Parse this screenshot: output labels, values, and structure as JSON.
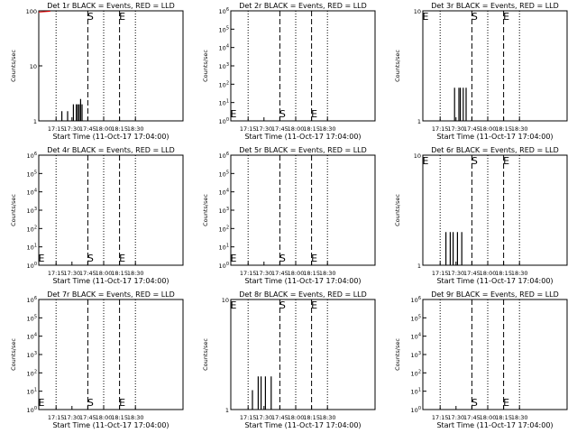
{
  "colors": {
    "events": "#000000",
    "lld": "#ff0000",
    "background": "#ffffff"
  },
  "chart_data": [
    {
      "type": "line",
      "title": "Det 1r BLACK = Events, RED = LLD",
      "xlabel": "Start Time (11-Oct-17 17:04:00)",
      "ylabel": "Counts/sec",
      "y_scale": "log",
      "ylim": [
        1,
        100
      ],
      "y_ticks": [
        "1",
        "10",
        "100"
      ],
      "x_ticks": [
        "17:15",
        "17:30",
        "17:45",
        "18:00",
        "18:15",
        "18:30"
      ],
      "xlim": [
        0,
        100
      ],
      "x_tick_positions": [
        12,
        23,
        34,
        45,
        56,
        67
      ],
      "dotted_lines": [
        12,
        45,
        67,
        100
      ],
      "dashed_lines": [
        34,
        56
      ],
      "markers": [
        {
          "label": "S",
          "x": 34
        },
        {
          "label": "E",
          "x": 56
        }
      ],
      "events": [
        {
          "x": 16,
          "y": 1.5
        },
        {
          "x": 20,
          "y": 1.5
        },
        {
          "x": 24,
          "y": 2
        },
        {
          "x": 26,
          "y": 2
        },
        {
          "x": 27,
          "y": 2
        },
        {
          "x": 28,
          "y": 2
        },
        {
          "x": 29,
          "y": 2.5
        },
        {
          "x": 30,
          "y": 2
        }
      ],
      "lld": [
        {
          "x": 0,
          "y": 95
        },
        {
          "x": 8,
          "y": 98
        }
      ]
    },
    {
      "type": "line",
      "title": "Det 2r BLACK = Events, RED = LLD",
      "xlabel": "Start Time (11-Oct-17 17:04:00)",
      "ylabel": "Counts/sec",
      "y_scale": "log",
      "ylim": [
        1,
        1000000
      ],
      "y_ticks": [
        "10^0",
        "10^1",
        "10^2",
        "10^3",
        "10^4",
        "10^5",
        "10^6"
      ],
      "x_ticks": [
        "17:15",
        "17:30",
        "17:45",
        "18:00",
        "18:15",
        "18:30"
      ],
      "xlim": [
        0,
        100
      ],
      "x_tick_positions": [
        12,
        23,
        34,
        45,
        56,
        67
      ],
      "dotted_lines": [
        12,
        45,
        67,
        100
      ],
      "dashed_lines": [
        34,
        56
      ],
      "markers": [
        {
          "label": "E",
          "x": 0
        },
        {
          "label": "S",
          "x": 34
        },
        {
          "label": "E",
          "x": 56
        }
      ],
      "events": [],
      "lld": []
    },
    {
      "type": "line",
      "title": "Det 3r BLACK = Events, RED = LLD",
      "xlabel": "Start Time (11-Oct-17 17:04:00)",
      "ylabel": "Counts/sec",
      "y_scale": "log",
      "ylim": [
        1,
        10
      ],
      "y_ticks": [
        "1",
        "10"
      ],
      "x_ticks": [
        "17:15",
        "17:30",
        "17:45",
        "18:00",
        "18:15",
        "18:30"
      ],
      "xlim": [
        0,
        100
      ],
      "x_tick_positions": [
        12,
        23,
        34,
        45,
        56,
        67
      ],
      "dotted_lines": [
        12,
        45,
        67,
        100
      ],
      "dashed_lines": [
        34,
        56
      ],
      "markers": [
        {
          "label": "E",
          "x": 0
        },
        {
          "label": "S",
          "x": 34
        },
        {
          "label": "E",
          "x": 56
        }
      ],
      "events": [
        {
          "x": 22,
          "y": 2
        },
        {
          "x": 25,
          "y": 2
        },
        {
          "x": 26,
          "y": 2
        },
        {
          "x": 28,
          "y": 2
        },
        {
          "x": 30,
          "y": 2
        }
      ],
      "lld": []
    },
    {
      "type": "line",
      "title": "Det 4r BLACK = Events, RED = LLD",
      "xlabel": "Start Time (11-Oct-17 17:04:00)",
      "ylabel": "Counts/sec",
      "y_scale": "log",
      "ylim": [
        1,
        1000000
      ],
      "y_ticks": [
        "10^0",
        "10^1",
        "10^2",
        "10^3",
        "10^4",
        "10^5",
        "10^6"
      ],
      "x_ticks": [
        "17:15",
        "17:30",
        "17:45",
        "18:00",
        "18:15",
        "18:30"
      ],
      "xlim": [
        0,
        100
      ],
      "x_tick_positions": [
        12,
        23,
        34,
        45,
        56,
        67
      ],
      "dotted_lines": [
        12,
        45,
        67,
        100
      ],
      "dashed_lines": [
        34,
        56
      ],
      "markers": [
        {
          "label": "E",
          "x": 0
        },
        {
          "label": "S",
          "x": 34
        },
        {
          "label": "E",
          "x": 56
        }
      ],
      "events": [],
      "lld": []
    },
    {
      "type": "line",
      "title": "Det 5r BLACK = Events, RED = LLD",
      "xlabel": "Start Time (11-Oct-17 17:04:00)",
      "ylabel": "Counts/sec",
      "y_scale": "log",
      "ylim": [
        1,
        1000000
      ],
      "y_ticks": [
        "10^0",
        "10^1",
        "10^2",
        "10^3",
        "10^4",
        "10^5",
        "10^6"
      ],
      "x_ticks": [
        "17:15",
        "17:30",
        "17:45",
        "18:00",
        "18:15",
        "18:30"
      ],
      "xlim": [
        0,
        100
      ],
      "x_tick_positions": [
        12,
        23,
        34,
        45,
        56,
        67
      ],
      "dotted_lines": [
        12,
        45,
        67,
        100
      ],
      "dashed_lines": [
        34,
        56
      ],
      "markers": [
        {
          "label": "E",
          "x": 0
        },
        {
          "label": "S",
          "x": 34
        },
        {
          "label": "E",
          "x": 56
        }
      ],
      "events": [],
      "lld": []
    },
    {
      "type": "line",
      "title": "Det 6r BLACK = Events, RED = LLD",
      "xlabel": "Start Time (11-Oct-17 17:04:00)",
      "ylabel": "Counts/sec",
      "y_scale": "log",
      "ylim": [
        1,
        10
      ],
      "y_ticks": [
        "1",
        "10"
      ],
      "x_ticks": [
        "17:15",
        "17:30",
        "17:45",
        "18:00",
        "18:15",
        "18:30"
      ],
      "xlim": [
        0,
        100
      ],
      "x_tick_positions": [
        12,
        23,
        34,
        45,
        56,
        67
      ],
      "dotted_lines": [
        12,
        45,
        67,
        100
      ],
      "dashed_lines": [
        34,
        56
      ],
      "markers": [
        {
          "label": "E",
          "x": 0
        },
        {
          "label": "S",
          "x": 34
        },
        {
          "label": "E",
          "x": 56
        }
      ],
      "events": [
        {
          "x": 16,
          "y": 2
        },
        {
          "x": 19,
          "y": 2
        },
        {
          "x": 21,
          "y": 2
        },
        {
          "x": 24,
          "y": 2
        },
        {
          "x": 27,
          "y": 2
        }
      ],
      "lld": []
    },
    {
      "type": "line",
      "title": "Det 7r BLACK = Events, RED = LLD",
      "xlabel": "Start Time (11-Oct-17 17:04:00)",
      "ylabel": "Counts/sec",
      "y_scale": "log",
      "ylim": [
        1,
        1000000
      ],
      "y_ticks": [
        "10^0",
        "10^1",
        "10^2",
        "10^3",
        "10^4",
        "10^5",
        "10^6"
      ],
      "x_ticks": [
        "17:15",
        "17:30",
        "17:45",
        "18:00",
        "18:15",
        "18:30"
      ],
      "xlim": [
        0,
        100
      ],
      "x_tick_positions": [
        12,
        23,
        34,
        45,
        56,
        67
      ],
      "dotted_lines": [
        12,
        45,
        67,
        100
      ],
      "dashed_lines": [
        34,
        56
      ],
      "markers": [
        {
          "label": "E",
          "x": 0
        },
        {
          "label": "S",
          "x": 34
        },
        {
          "label": "E",
          "x": 56
        }
      ],
      "events": [],
      "lld": []
    },
    {
      "type": "line",
      "title": "Det 8r BLACK = Events, RED = LLD",
      "xlabel": "Start Time (11-Oct-17 17:04:00)",
      "ylabel": "Counts/sec",
      "y_scale": "log",
      "ylim": [
        1,
        10
      ],
      "y_ticks": [
        "1",
        "10"
      ],
      "x_ticks": [
        "17:15",
        "17:30",
        "17:45",
        "18:00",
        "18:15",
        "18:30"
      ],
      "xlim": [
        0,
        100
      ],
      "x_tick_positions": [
        12,
        23,
        34,
        45,
        56,
        67
      ],
      "dotted_lines": [
        12,
        45,
        67,
        100
      ],
      "dashed_lines": [
        34,
        56
      ],
      "markers": [
        {
          "label": "E",
          "x": 0
        },
        {
          "label": "S",
          "x": 34
        },
        {
          "label": "E",
          "x": 56
        }
      ],
      "events": [
        {
          "x": 15,
          "y": 1.5
        },
        {
          "x": 19,
          "y": 2
        },
        {
          "x": 21,
          "y": 2
        },
        {
          "x": 24,
          "y": 2
        },
        {
          "x": 28,
          "y": 2
        }
      ],
      "lld": []
    },
    {
      "type": "line",
      "title": "Det 9r BLACK = Events, RED = LLD",
      "xlabel": "Start Time (11-Oct-17 17:04:00)",
      "ylabel": "Counts/sec",
      "y_scale": "log",
      "ylim": [
        1,
        1000000
      ],
      "y_ticks": [
        "10^0",
        "10^1",
        "10^2",
        "10^3",
        "10^4",
        "10^5",
        "10^6"
      ],
      "x_ticks": [
        "17:15",
        "17:30",
        "17:45",
        "18:00",
        "18:15",
        "18:30"
      ],
      "xlim": [
        0,
        100
      ],
      "x_tick_positions": [
        12,
        23,
        34,
        45,
        56,
        67
      ],
      "dotted_lines": [
        12,
        45,
        67,
        100
      ],
      "dashed_lines": [
        34,
        56
      ],
      "markers": [
        {
          "label": "S",
          "x": 34
        },
        {
          "label": "E",
          "x": 56
        }
      ],
      "events": [],
      "lld": []
    }
  ]
}
